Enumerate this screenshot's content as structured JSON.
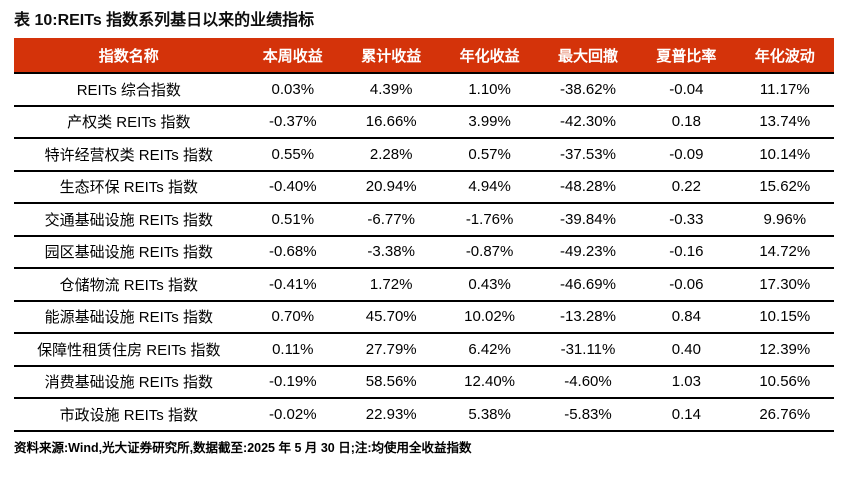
{
  "title": "表 10:REITs 指数系列基日以来的业绩指标",
  "table": {
    "headers": [
      "指数名称",
      "本周收益",
      "累计收益",
      "年化收益",
      "最大回撤",
      "夏普比率",
      "年化波动"
    ],
    "rows": [
      [
        "REITs 综合指数",
        "0.03%",
        "4.39%",
        "1.10%",
        "-38.62%",
        "-0.04",
        "11.17%"
      ],
      [
        "产权类 REITs 指数",
        "-0.37%",
        "16.66%",
        "3.99%",
        "-42.30%",
        "0.18",
        "13.74%"
      ],
      [
        "特许经营权类 REITs 指数",
        "0.55%",
        "2.28%",
        "0.57%",
        "-37.53%",
        "-0.09",
        "10.14%"
      ],
      [
        "生态环保 REITs 指数",
        "-0.40%",
        "20.94%",
        "4.94%",
        "-48.28%",
        "0.22",
        "15.62%"
      ],
      [
        "交通基础设施 REITs 指数",
        "0.51%",
        "-6.77%",
        "-1.76%",
        "-39.84%",
        "-0.33",
        "9.96%"
      ],
      [
        "园区基础设施 REITs 指数",
        "-0.68%",
        "-3.38%",
        "-0.87%",
        "-49.23%",
        "-0.16",
        "14.72%"
      ],
      [
        "仓储物流 REITs 指数",
        "-0.41%",
        "1.72%",
        "0.43%",
        "-46.69%",
        "-0.06",
        "17.30%"
      ],
      [
        "能源基础设施 REITs 指数",
        "0.70%",
        "45.70%",
        "10.02%",
        "-13.28%",
        "0.84",
        "10.15%"
      ],
      [
        "保障性租赁住房 REITs 指数",
        "0.11%",
        "27.79%",
        "6.42%",
        "-31.11%",
        "0.40",
        "12.39%"
      ],
      [
        "消费基础设施 REITs 指数",
        "-0.19%",
        "58.56%",
        "12.40%",
        "-4.60%",
        "1.03",
        "10.56%"
      ],
      [
        "市政设施 REITs 指数",
        "-0.02%",
        "22.93%",
        "5.38%",
        "-5.83%",
        "0.14",
        "26.76%"
      ]
    ]
  },
  "footnote": "资料来源:Wind,光大证券研究所,数据截至:2025 年 5 月 30 日;注:均使用全收益指数",
  "colors": {
    "header_bg": "#d4330a",
    "header_text": "#ffffff",
    "row_border": "#000000"
  }
}
